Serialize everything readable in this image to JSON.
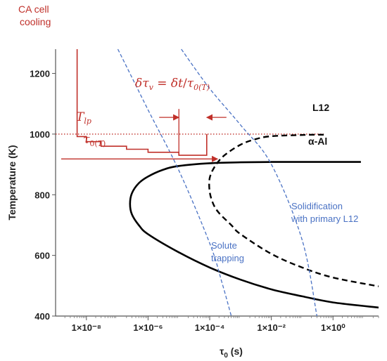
{
  "chart_data": {
    "type": "line",
    "xlabel_main": "τ",
    "xlabel_sub": "0",
    "xlabel_unit": " (s)",
    "ylabel": "Temperature (K)",
    "x_scale": "log",
    "xlim": [
      1e-09,
      30
    ],
    "ylim": [
      400,
      1280
    ],
    "x_ticks": [
      {
        "value": 1e-08,
        "label": "1×10⁻⁸"
      },
      {
        "value": 1e-06,
        "label": "1×10⁻⁶"
      },
      {
        "value": 0.0001,
        "label": "1×10⁻⁴"
      },
      {
        "value": 0.01,
        "label": "1×10⁻²"
      },
      {
        "value": 1,
        "label": "1×10⁰"
      }
    ],
    "y_ticks": [
      {
        "value": 400,
        "label": "400"
      },
      {
        "value": 600,
        "label": "600"
      },
      {
        "value": 800,
        "label": "800"
      },
      {
        "value": 1000,
        "label": "1000"
      },
      {
        "value": 1200,
        "label": "1200"
      }
    ],
    "grid": false,
    "series": [
      {
        "name": "α-Al",
        "style": "solid-black",
        "color": "#000000",
        "points": [
          [
            8,
            908
          ],
          [
            0.1,
            908
          ],
          [
            0.01,
            908
          ],
          [
            0.001,
            907
          ],
          [
            0.0001,
            904
          ],
          [
            1e-05,
            895
          ],
          [
            3e-06,
            882
          ],
          [
            1e-06,
            860
          ],
          [
            5e-07,
            838
          ],
          [
            3e-07,
            805
          ],
          [
            2.6e-07,
            770
          ],
          [
            3e-07,
            735
          ],
          [
            5e-07,
            700
          ],
          [
            1e-06,
            670
          ],
          [
            1e-05,
            610
          ],
          [
            0.0001,
            560
          ],
          [
            0.001,
            520
          ],
          [
            0.01,
            488
          ],
          [
            0.1,
            465
          ],
          [
            1,
            445
          ],
          [
            30,
            428
          ]
        ]
      },
      {
        "name": "L12",
        "style": "dashed-black",
        "color": "#000000",
        "points": [
          [
            0.5,
            998
          ],
          [
            0.1,
            997
          ],
          [
            0.01,
            993
          ],
          [
            0.003,
            983
          ],
          [
            0.001,
            965
          ],
          [
            0.0003,
            930
          ],
          [
            0.00015,
            895
          ],
          [
            0.0001,
            855
          ],
          [
            0.0001,
            810
          ],
          [
            0.00013,
            770
          ],
          [
            0.0002,
            740
          ],
          [
            0.0005,
            700
          ],
          [
            0.001,
            670
          ],
          [
            0.01,
            605
          ],
          [
            0.1,
            560
          ],
          [
            1,
            527
          ],
          [
            30,
            498
          ]
        ]
      },
      {
        "name": "Solute trapping",
        "style": "dashed-blue",
        "color": "#4a72c4",
        "points": [
          [
            1.05e-07,
            1280
          ],
          [
            1e-06,
            1080
          ],
          [
            1e-05,
            880
          ],
          [
            0.0001,
            640
          ],
          [
            0.00025,
            510
          ],
          [
            0.0005,
            400
          ]
        ]
      },
      {
        "name": "Solidification with primary L12",
        "style": "dashed-blue",
        "color": "#4a72c4",
        "points": [
          [
            1.2e-05,
            1280
          ],
          [
            0.0001,
            1150
          ],
          [
            0.001,
            1030
          ],
          [
            0.01,
            900
          ],
          [
            0.1,
            650
          ],
          [
            0.3,
            400
          ]
        ]
      }
    ],
    "cooling_steps": {
      "color": "#c0302a",
      "points": [
        [
          5e-09,
          1280
        ],
        [
          5e-09,
          1000
        ],
        [
          5e-09,
          992
        ],
        [
          1e-08,
          992
        ],
        [
          1e-08,
          975
        ],
        [
          3e-08,
          975
        ],
        [
          3e-08,
          960
        ],
        [
          2e-07,
          960
        ],
        [
          2e-07,
          950
        ],
        [
          1e-06,
          950
        ],
        [
          1e-06,
          940
        ],
        [
          1e-05,
          940
        ],
        [
          1e-05,
          930
        ],
        [
          8e-05,
          930
        ],
        [
          8e-05,
          1000
        ]
      ]
    },
    "tlp_line": {
      "y": 1000,
      "color": "#c0302a",
      "style": "dotted"
    },
    "tau_arrow": {
      "from": 1e-09,
      "to": 0.00018,
      "y": 918,
      "color": "#c0302a"
    },
    "delta_arrows": {
      "left": 1e-05,
      "right": 8e-05,
      "y": 1055,
      "color": "#c0302a"
    },
    "annotations": {
      "cooling_line1": "CA cell",
      "cooling_line2": "cooling",
      "L12_label": "L12",
      "alAl_label": "α-Al",
      "solute_line1": "Solute",
      "solute_line2": "trapping",
      "solid_line1": "Solidification",
      "solid_line2": "with primary L12"
    }
  }
}
